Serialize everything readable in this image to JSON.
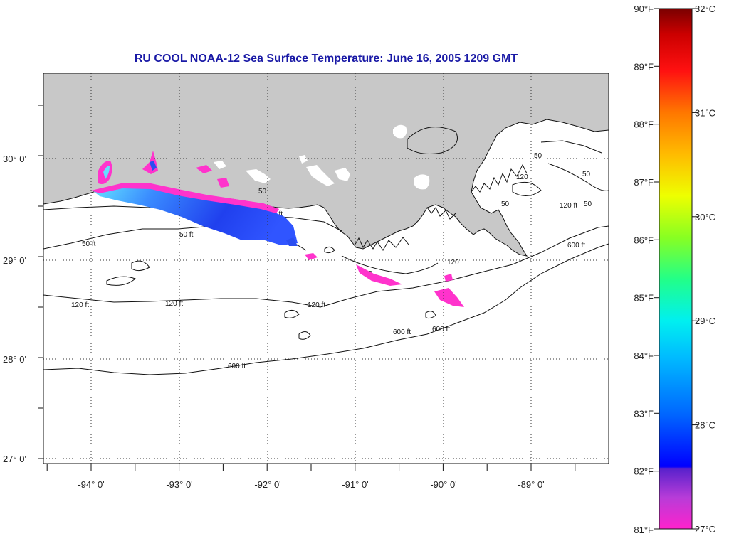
{
  "title": "RU COOL  NOAA-12  Sea Surface Temperature:  June 16, 2005 1209 GMT",
  "longitude_labels": [
    "-94° 0'",
    "-93° 0'",
    "-92° 0'",
    "-91° 0'",
    "-90° 0'",
    "-89° 0'"
  ],
  "latitude_labels": [
    "30° 0'",
    "29° 0'",
    "28° 0'",
    "27° 0'"
  ],
  "contour_labels": {
    "ft50": "50 ft",
    "ft120": "120 ft",
    "ft600": "600 ft",
    "n50": "50",
    "n120": "120"
  },
  "colorbar": {
    "fahrenheit_labels": [
      "90°F",
      "89°F",
      "88°F",
      "87°F",
      "86°F",
      "85°F",
      "84°F",
      "83°F",
      "82°F",
      "81°F"
    ],
    "celsius_labels": [
      "32°C",
      "31°C",
      "30°C",
      "29°C",
      "28°C",
      "27°C"
    ],
    "fahrenheit_range": [
      81,
      90
    ],
    "celsius_range": [
      27,
      32
    ]
  },
  "colors": {
    "land": "#c8c8c8",
    "water": "#ffffff",
    "title": "#1a1aa6",
    "cool_pink": "#ff33cc",
    "cool_blue": "#2a4df0",
    "cool_cyan": "#55ddff"
  }
}
